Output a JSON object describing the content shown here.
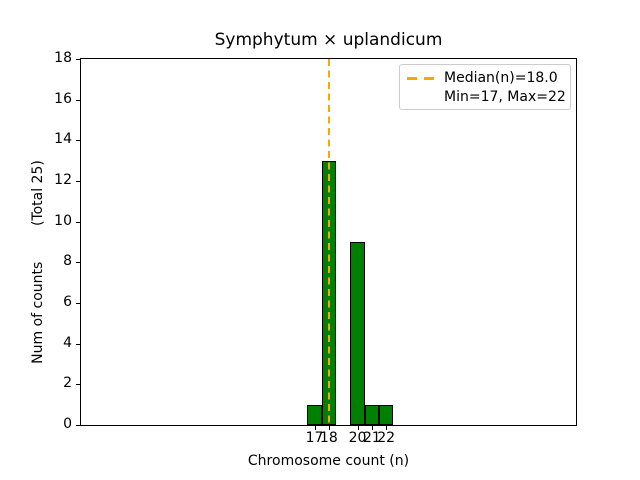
{
  "chart_data": {
    "type": "bar",
    "title": "Symphytum × uplandicum",
    "xlabel": "Chromosome count (n)",
    "ylabel": "Num of counts        (Total 25)",
    "categories": [
      17,
      18,
      20,
      21,
      22
    ],
    "values": [
      1,
      13,
      9,
      1,
      1
    ],
    "bin_width": 1,
    "total_counts": 25,
    "median": 18.0,
    "min": 17,
    "max": 22,
    "ylim": [
      0,
      18
    ],
    "yticks": [
      "0",
      "2",
      "4",
      "6",
      "8",
      "10",
      "12",
      "14",
      "16",
      "18"
    ],
    "xticks": [
      "17",
      "18",
      "20",
      "21",
      "22"
    ],
    "grid": false,
    "legend_position": "upper right",
    "legend": [
      "Median(n)=18.0",
      "Min=17, Max=22"
    ],
    "median_line": {
      "x": 18,
      "style": "dashed"
    },
    "colors": {
      "bar_fill": "#008000",
      "bar_edge": "#000000",
      "median_line": "#ffa500",
      "legend_border": "#cccccc",
      "axis": "#000000",
      "text": "#000000"
    }
  }
}
